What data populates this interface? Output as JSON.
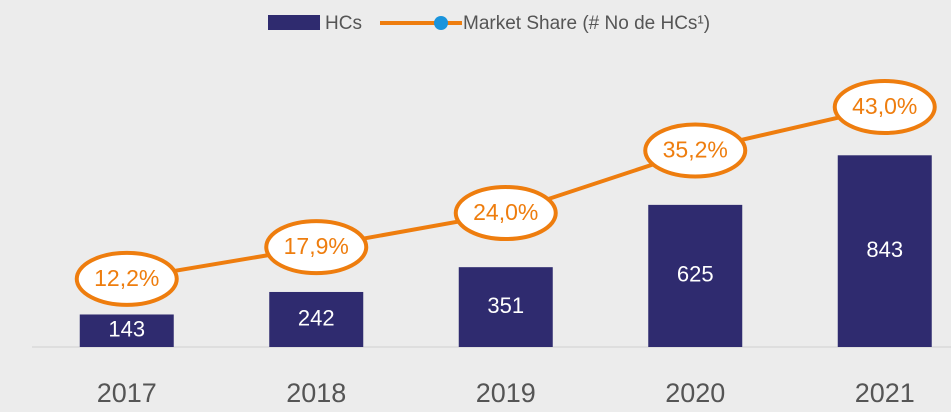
{
  "chart_data": {
    "type": "bar",
    "categories": [
      "2017",
      "2018",
      "2019",
      "2020",
      "2021"
    ],
    "series": [
      {
        "name": "HCs",
        "color": "#2f2b6f",
        "values": [
          143,
          242,
          351,
          625,
          843
        ]
      },
      {
        "name": "Market Share (# No de HCs¹)",
        "type": "line",
        "axis": "y2",
        "color": "#ee7d0e",
        "values": [
          12.2,
          17.9,
          24.0,
          35.2,
          43.0
        ],
        "value_labels": [
          "12,2%",
          "17,9%",
          "24,0%",
          "35,2%",
          "43,0%"
        ]
      }
    ],
    "ylim": [
      0,
      1350
    ],
    "y2lim": [
      0,
      55
    ]
  }
}
